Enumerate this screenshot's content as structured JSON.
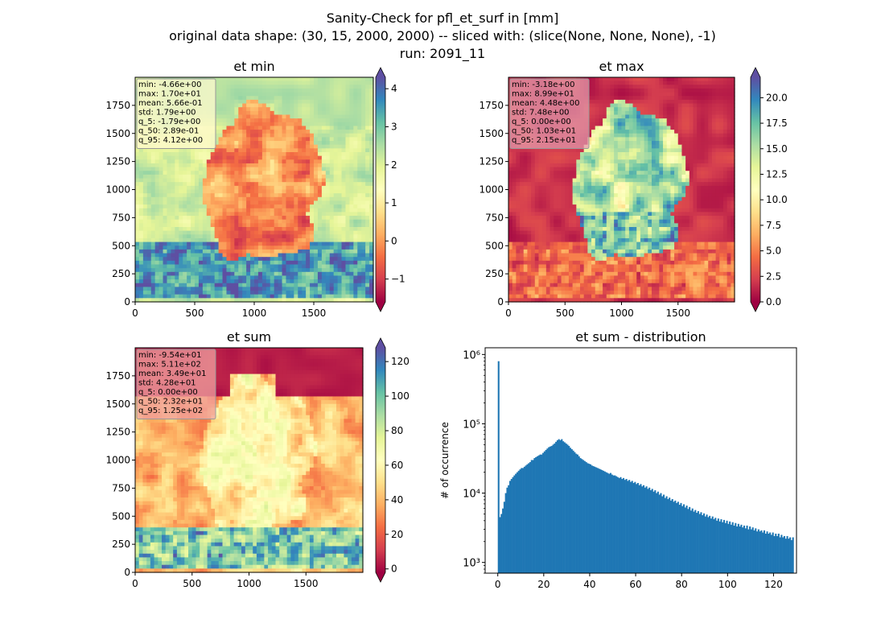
{
  "figure": {
    "title_lines": [
      "Sanity-Check for pfl_et_surf in [mm]",
      "original data shape: (30, 15, 2000, 2000) -- sliced with: (slice(None, None, None), -1)",
      "run: 2091_11"
    ]
  },
  "colors": {
    "hist_bar": "#1f77b4",
    "cmap": "Spectral",
    "cmap_stops": [
      "#9e0142",
      "#d53e4f",
      "#f46d43",
      "#fdae61",
      "#fee08b",
      "#ffffbf",
      "#e6f598",
      "#abdda4",
      "#66c2a5",
      "#3288bd",
      "#5e4fa2"
    ]
  },
  "chart_data": [
    {
      "type": "heatmap",
      "title": "et min",
      "x_ticks": [
        "0",
        "500",
        "1000",
        "1500"
      ],
      "y_ticks": [
        "0",
        "250",
        "500",
        "750",
        "1000",
        "1250",
        "1500",
        "1750"
      ],
      "xlim": [
        0,
        2000
      ],
      "ylim": [
        0,
        2000
      ],
      "colorbar": {
        "vmin": -1.6,
        "vmax": 4.3,
        "ticks": [
          "−1",
          "0",
          "1",
          "2",
          "3",
          "4"
        ],
        "tick_values": [
          -1,
          0,
          1,
          2,
          3,
          4
        ],
        "extend": "both"
      },
      "stats": [
        "min: -4.66e+00",
        "max: 1.70e+01",
        "mean: 5.66e-01",
        "std: 1.79e+00",
        "q_5: -1.79e+00",
        "q_50: 2.89e-01",
        "q_95: 4.12e+00"
      ],
      "stats_box_color": "#fffacd"
    },
    {
      "type": "heatmap",
      "title": "et max",
      "x_ticks": [
        "0",
        "500",
        "1000",
        "1500"
      ],
      "y_ticks": [
        "0",
        "250",
        "500",
        "750",
        "1000",
        "1250",
        "1500",
        "1750"
      ],
      "xlim": [
        0,
        2000
      ],
      "ylim": [
        0,
        2000
      ],
      "colorbar": {
        "vmin": 0.0,
        "vmax": 22.0,
        "ticks": [
          "0.0",
          "2.5",
          "5.0",
          "7.5",
          "10.0",
          "12.5",
          "15.0",
          "17.5",
          "20.0"
        ],
        "tick_values": [
          0,
          2.5,
          5,
          7.5,
          10,
          12.5,
          15,
          17.5,
          20
        ],
        "extend": "both"
      },
      "stats": [
        "min: -3.18e+00",
        "max: 8.99e+01",
        "mean: 4.48e+00",
        "std: 7.48e+00",
        "q_5: 0.00e+00",
        "q_50: 1.03e+01",
        "q_95: 2.15e+01"
      ],
      "stats_box_color": "#e39aa9"
    },
    {
      "type": "heatmap",
      "title": "et sum",
      "x_ticks": [
        "0",
        "500",
        "1000",
        "1500"
      ],
      "y_ticks": [
        "0",
        "250",
        "500",
        "750",
        "1000",
        "1250",
        "1500",
        "1750"
      ],
      "xlim": [
        0,
        2000
      ],
      "ylim": [
        0,
        2000
      ],
      "colorbar": {
        "vmin": -2.0,
        "vmax": 128.0,
        "ticks": [
          "0",
          "20",
          "40",
          "60",
          "80",
          "100",
          "120"
        ],
        "tick_values": [
          0,
          20,
          40,
          60,
          80,
          100,
          120
        ],
        "extend": "both"
      },
      "stats": [
        "min: -9.54e+01",
        "max: 5.11e+02",
        "mean: 3.49e+01",
        "std: 4.28e+01",
        "q_5: 0.00e+00",
        "q_50: 2.32e+01",
        "q_95: 1.25e+02"
      ],
      "stats_box_color": "#f0a3a0"
    },
    {
      "type": "bar",
      "title": "et sum - distribution",
      "ylabel": "# of occurrence",
      "xlabel": "",
      "yscale": "log",
      "ylim": [
        700,
        1250000
      ],
      "xlim": [
        -5.5,
        130
      ],
      "x_ticks": [
        "0",
        "20",
        "40",
        "60",
        "80",
        "100",
        "120"
      ],
      "x_tick_values": [
        0,
        20,
        40,
        60,
        80,
        100,
        120
      ],
      "y_ticks": [
        "10³",
        "10⁴",
        "10⁵",
        "10⁶"
      ],
      "y_tick_values": [
        1000,
        10000,
        100000,
        1000000
      ],
      "bin_start": 0,
      "bin_width": 0.625,
      "values": [
        800000,
        4500,
        5000,
        6000,
        7500,
        10000,
        12000,
        13000,
        15000,
        16000,
        17000,
        18000,
        19000,
        20000,
        21000,
        22000,
        23000,
        23000,
        24000,
        25000,
        26000,
        27000,
        28000,
        30000,
        30000,
        32000,
        33000,
        34000,
        35000,
        36000,
        36000,
        38000,
        40000,
        42000,
        44000,
        46000,
        47000,
        48000,
        50000,
        52000,
        55000,
        58000,
        60000,
        58000,
        60000,
        56000,
        54000,
        52000,
        50000,
        48000,
        45000,
        43000,
        41000,
        39000,
        37000,
        36000,
        34000,
        32000,
        31000,
        30000,
        29000,
        28000,
        27000,
        26500,
        26000,
        25000,
        24500,
        24000,
        23500,
        23000,
        22500,
        22000,
        21500,
        21000,
        20500,
        20000,
        19500,
        19000,
        19500,
        18500,
        18000,
        18000,
        17500,
        17000,
        16500,
        17000,
        16000,
        16500,
        15500,
        16000,
        15000,
        15500,
        14500,
        15000,
        14000,
        14500,
        13500,
        14000,
        13000,
        13500,
        12500,
        13000,
        12000,
        12500,
        11500,
        12000,
        11000,
        11500,
        10500,
        11000,
        10000,
        10500,
        9500,
        10000,
        9000,
        9500,
        8500,
        9000,
        8200,
        8600,
        7800,
        8200,
        7500,
        7800,
        7200,
        7500,
        6800,
        7200,
        6500,
        6900,
        6200,
        6600,
        5900,
        6300,
        5600,
        6000,
        5400,
        5700,
        5200,
        5500,
        5000,
        5300,
        4800,
        5100,
        4600,
        4900,
        4500,
        4700,
        4300,
        4600,
        4200,
        4400,
        4000,
        4300,
        3900,
        4200,
        3800,
        4100,
        3700,
        4000,
        3600,
        3900,
        3500,
        3800,
        3400,
        3700,
        3300,
        3600,
        3300,
        3500,
        3200,
        3400,
        3100,
        3400,
        3000,
        3300,
        3000,
        3200,
        2900,
        3100,
        2800,
        3000,
        2800,
        2900,
        2700,
        2900,
        2600,
        2800,
        2600,
        2700,
        2500,
        2700,
        2400,
        2600,
        2400,
        2600,
        2300,
        2500,
        2300,
        2400,
        2200,
        2400,
        2200,
        2300,
        2100,
        2300
      ]
    }
  ]
}
